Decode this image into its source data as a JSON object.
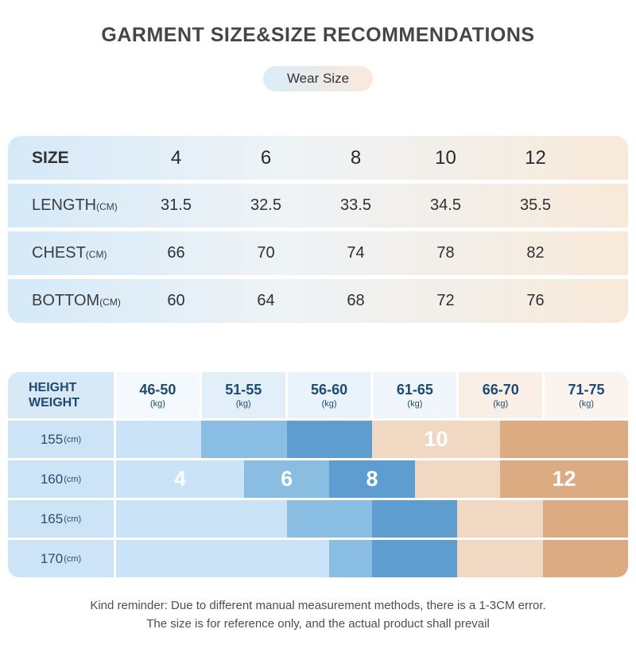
{
  "header": {
    "title": "GARMENT SIZE&SIZE RECOMMENDATIONS",
    "badge": "Wear Size"
  },
  "size_table": {
    "header_row": {
      "label": "SIZE",
      "unit": "",
      "values": [
        "4",
        "6",
        "8",
        "10",
        "12"
      ]
    },
    "rows": [
      {
        "label": "LENGTH",
        "unit": "(CM)",
        "values": [
          "31.5",
          "32.5",
          "33.5",
          "34.5",
          "35.5"
        ]
      },
      {
        "label": "CHEST",
        "unit": "(CM)",
        "values": [
          "66",
          "70",
          "74",
          "78",
          "82"
        ]
      },
      {
        "label": "BOTTOM",
        "unit": "(CM)",
        "values": [
          "60",
          "64",
          "68",
          "72",
          "76"
        ]
      }
    ]
  },
  "recommendation_table": {
    "corner_label": {
      "line1": "HEIGHT",
      "line2": "WEIGHT"
    },
    "weight_columns": [
      {
        "range": "46-50",
        "unit": "(kg)",
        "bg": "#f4f9fd"
      },
      {
        "range": "51-55",
        "unit": "(kg)",
        "bg": "#e2eff9"
      },
      {
        "range": "56-60",
        "unit": "(kg)",
        "bg": "#e9f3fb"
      },
      {
        "range": "61-65",
        "unit": "(kg)",
        "bg": "#f0f6fb"
      },
      {
        "range": "66-70",
        "unit": "(kg)",
        "bg": "#f9efe6"
      },
      {
        "range": "71-75",
        "unit": "(kg)",
        "bg": "#fbf4ee"
      }
    ],
    "total_units": 12,
    "size_colors": {
      "4": "#cbe3f6",
      "6": "#8abde2",
      "8": "#5e9dcf",
      "10": "#f1d8c3",
      "12": "#dcab81"
    },
    "height_rows": [
      {
        "label": "155",
        "unit": "(cm)",
        "segments": [
          {
            "size": "4",
            "span": [
              0,
              2
            ],
            "text": ""
          },
          {
            "size": "6",
            "span": [
              2,
              4
            ],
            "text": ""
          },
          {
            "size": "8",
            "span": [
              4,
              6
            ],
            "text": ""
          },
          {
            "size": "10",
            "span": [
              6,
              9
            ],
            "text": "10"
          },
          {
            "size": "12",
            "span": [
              9,
              12
            ],
            "text": ""
          }
        ]
      },
      {
        "label": "160",
        "unit": "(cm)",
        "segments": [
          {
            "size": "4",
            "span": [
              0,
              3
            ],
            "text": "4"
          },
          {
            "size": "6",
            "span": [
              3,
              5
            ],
            "text": "6"
          },
          {
            "size": "8",
            "span": [
              5,
              7
            ],
            "text": "8"
          },
          {
            "size": "10",
            "span": [
              7,
              9
            ],
            "text": ""
          },
          {
            "size": "12",
            "span": [
              9,
              12
            ],
            "text": "12"
          }
        ]
      },
      {
        "label": "165",
        "unit": "(cm)",
        "segments": [
          {
            "size": "4",
            "span": [
              0,
              4
            ],
            "text": ""
          },
          {
            "size": "6",
            "span": [
              4,
              6
            ],
            "text": ""
          },
          {
            "size": "8",
            "span": [
              6,
              8
            ],
            "text": ""
          },
          {
            "size": "10",
            "span": [
              8,
              10
            ],
            "text": ""
          },
          {
            "size": "12",
            "span": [
              10,
              12
            ],
            "text": ""
          }
        ]
      },
      {
        "label": "170",
        "unit": "(cm)",
        "segments": [
          {
            "size": "4",
            "span": [
              0,
              5
            ],
            "text": ""
          },
          {
            "size": "6",
            "span": [
              5,
              6
            ],
            "text": ""
          },
          {
            "size": "8",
            "span": [
              6,
              8
            ],
            "text": ""
          },
          {
            "size": "10",
            "span": [
              8,
              10
            ],
            "text": ""
          },
          {
            "size": "12",
            "span": [
              10,
              12
            ],
            "text": ""
          }
        ]
      }
    ]
  },
  "footer": {
    "note1": "Kind reminder: Due to different manual measurement methods, there is a 1-3CM error.",
    "note2": "The size is for reference only, and the actual product shall prevail"
  },
  "colors": {
    "row_gradient_left": "#d5e9f8",
    "row_gradient_mid": "#eef3f6",
    "row_gradient_right": "#f8e9d9",
    "badge_gradient_left": "#d9ecf9",
    "badge_gradient_right": "#fbe9dd",
    "header_text": "#1d4a75",
    "height_label_text": "#2b4d6b",
    "corner_bg": "#d7e9f7",
    "height_label_bg": "#cde4f6"
  },
  "chart_data": [
    {
      "type": "table",
      "title": "Garment size measurements (CM)",
      "columns": [
        "SIZE",
        "4",
        "6",
        "8",
        "10",
        "12"
      ],
      "rows": [
        [
          "LENGTH(CM)",
          31.5,
          32.5,
          33.5,
          34.5,
          35.5
        ],
        [
          "CHEST(CM)",
          66,
          70,
          74,
          78,
          82
        ],
        [
          "BOTTOM(CM)",
          60,
          64,
          68,
          72,
          76
        ]
      ]
    },
    {
      "type": "heatmap",
      "title": "Recommended size by height and weight",
      "xlabel": "WEIGHT (kg)",
      "ylabel": "HEIGHT (cm)",
      "x_categories": [
        "46-50",
        "51-55",
        "56-60",
        "61-65",
        "66-70",
        "71-75"
      ],
      "y_categories": [
        "155",
        "160",
        "165",
        "170"
      ],
      "values": [
        [
          "4",
          "6",
          "8",
          "10",
          "10/12",
          "12"
        ],
        [
          "4",
          "4/6",
          "6/8",
          "8/10",
          "10/12",
          "12"
        ],
        [
          "4",
          "4",
          "6",
          "8",
          "10",
          "12"
        ],
        [
          "4",
          "4",
          "4/6",
          "8",
          "10",
          "12"
        ]
      ],
      "legend": [
        "4",
        "6",
        "8",
        "10",
        "12"
      ],
      "legend_position": "in-cell labels"
    }
  ]
}
